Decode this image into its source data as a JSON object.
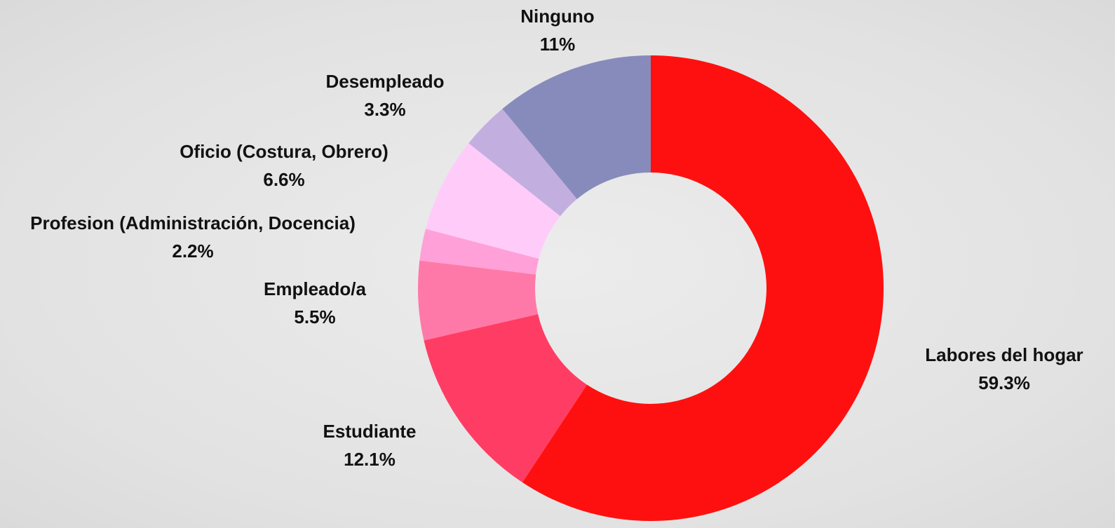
{
  "chart_data": {
    "type": "pie",
    "categories": [
      "Labores del hogar",
      "Estudiante",
      "Empleado/a",
      "Profesion (Administración, Docencia)",
      "Oficio (Costura, Obrero)",
      "Desempleado",
      "Ninguno"
    ],
    "values": [
      59.3,
      12.1,
      5.5,
      2.2,
      6.6,
      3.3,
      11
    ],
    "value_labels": [
      "59.3%",
      "12.1%",
      "5.5%",
      "2.2%",
      "6.6%",
      "3.3%",
      "11%"
    ],
    "colors": [
      "#ff1010",
      "#ff3d64",
      "#ff79a8",
      "#ffa0d8",
      "#ffccfa",
      "#c3aee0",
      "#878bbb"
    ]
  }
}
